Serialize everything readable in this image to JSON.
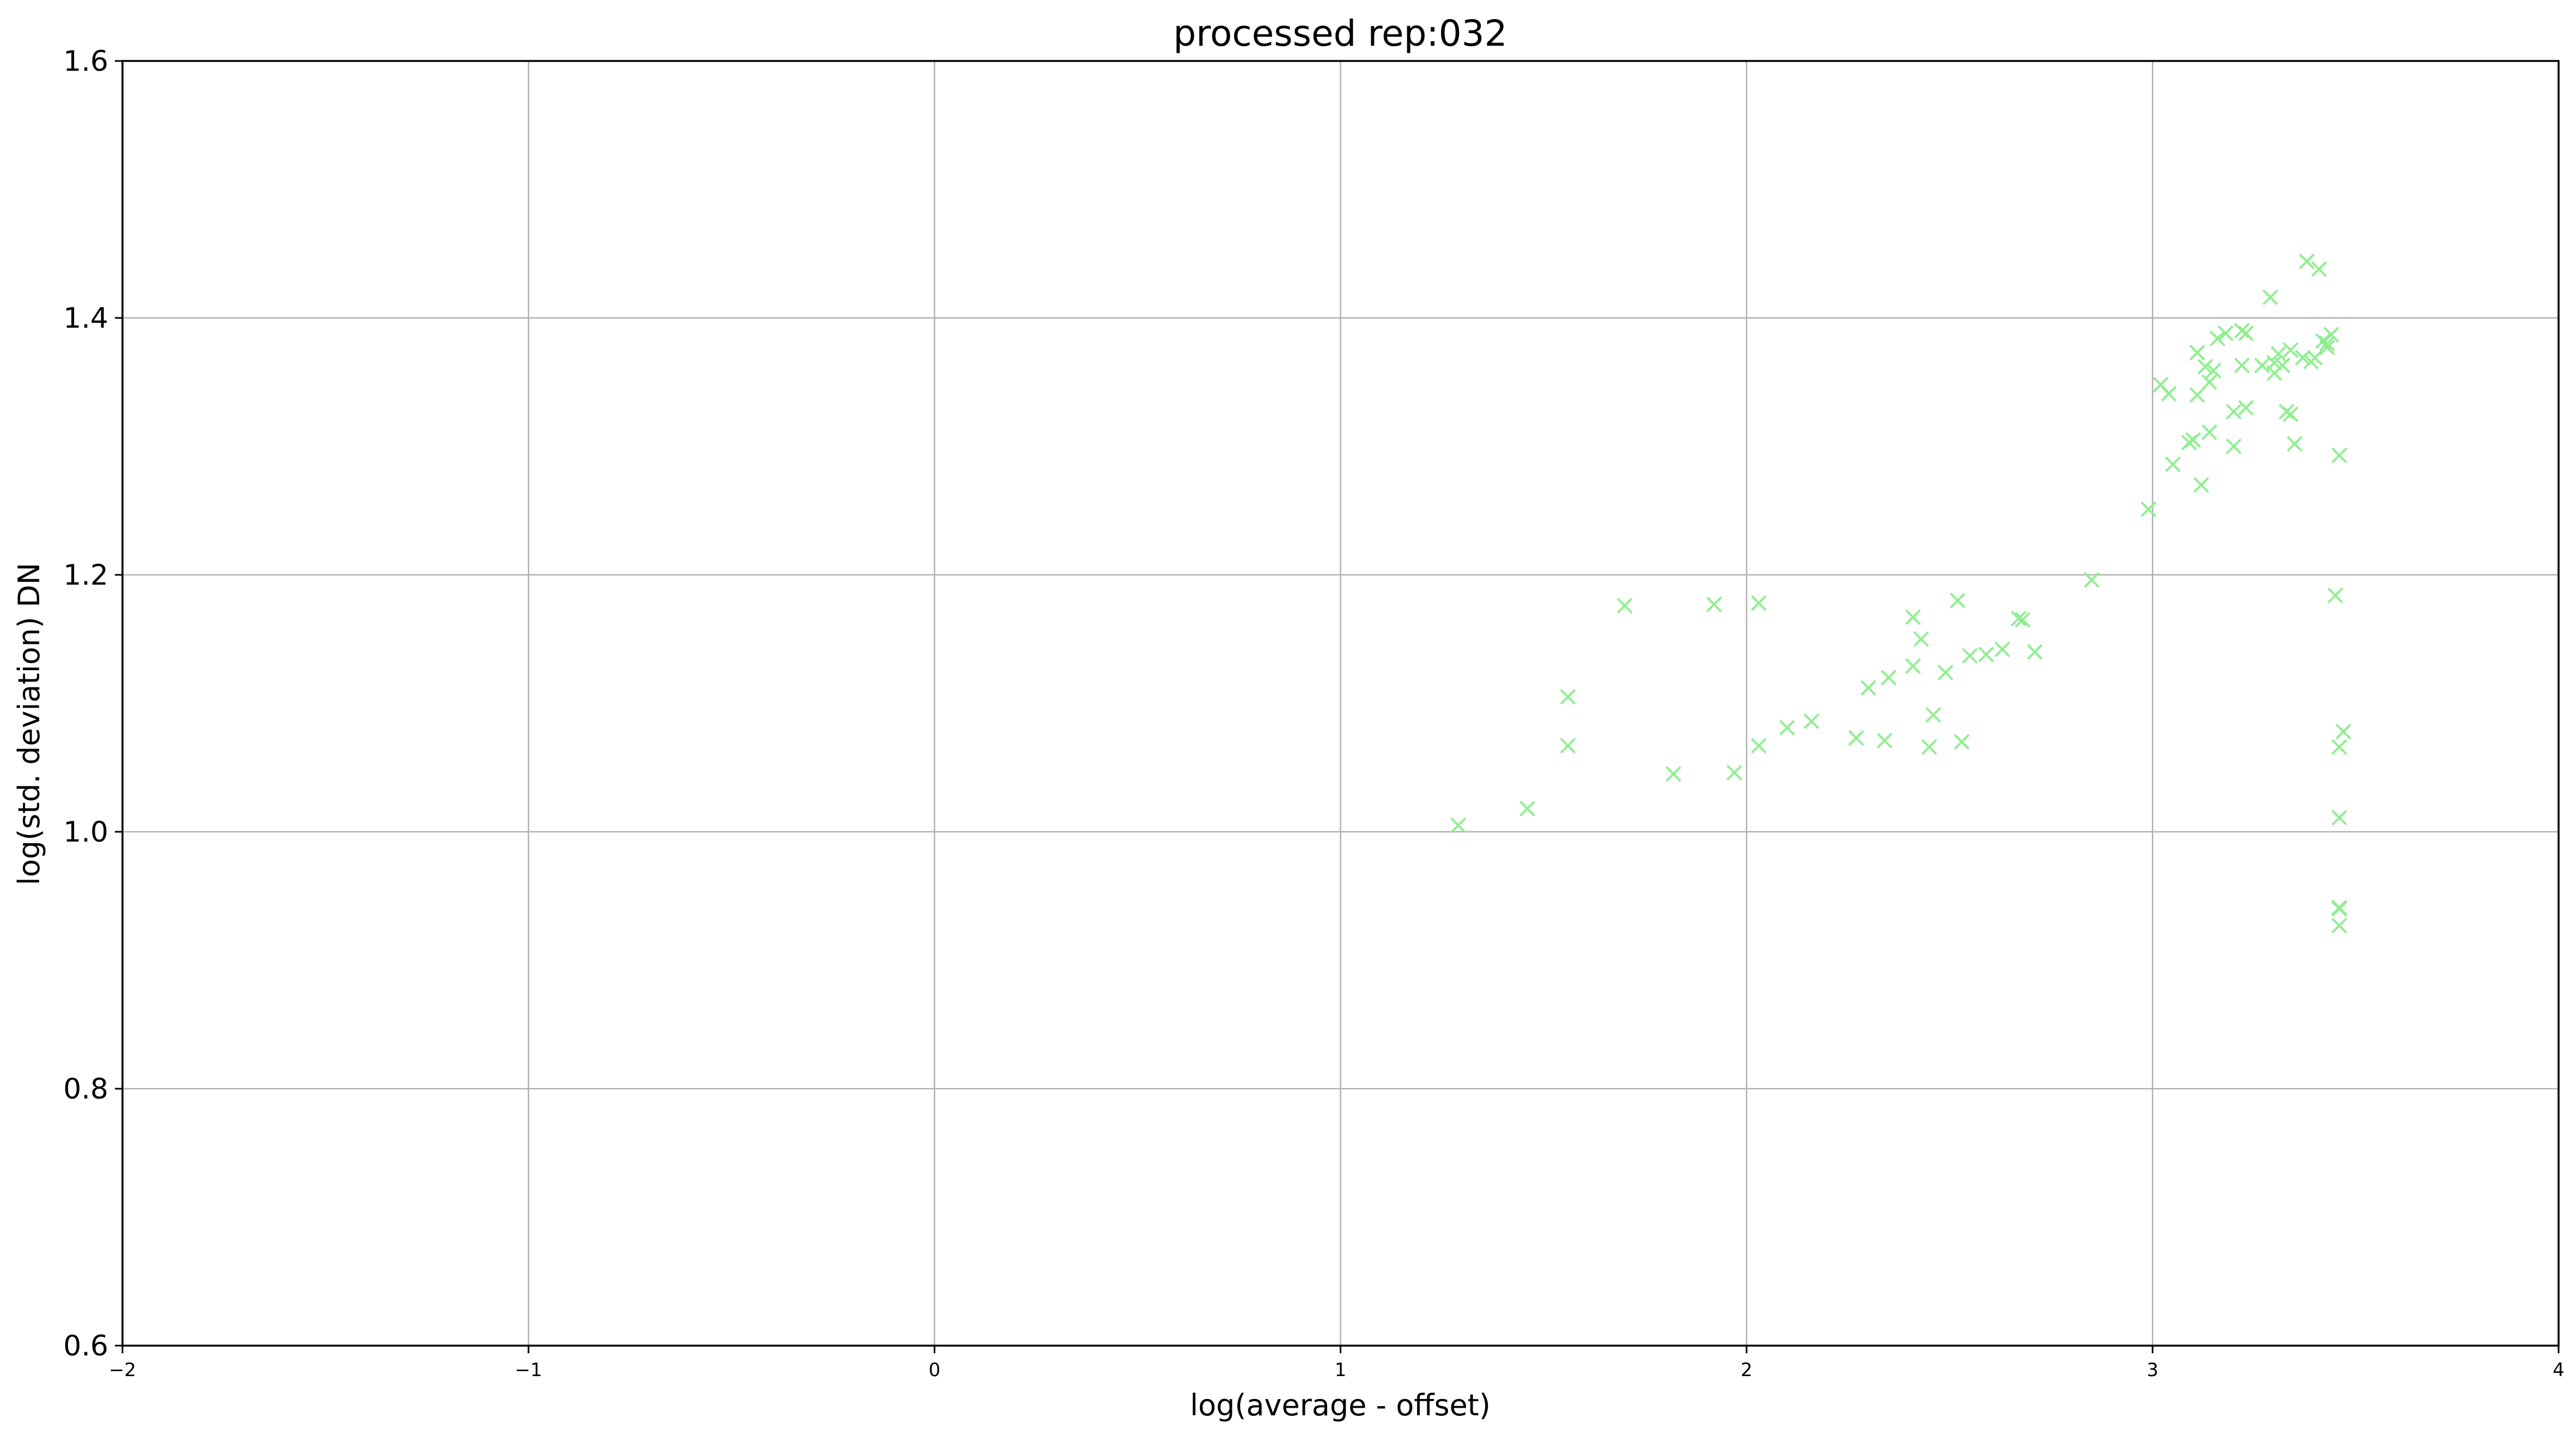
{
  "chart_data": {
    "type": "scatter",
    "title": "processed rep:032",
    "xlabel": "log(average - offset)",
    "ylabel": "log(std. deviation) DN",
    "xlim": [
      -2,
      4
    ],
    "ylim": [
      0.6,
      1.6
    ],
    "xticks": [
      -2,
      -1,
      0,
      1,
      2,
      3,
      4
    ],
    "xtick_labels": [
      "−2",
      "−1",
      "0",
      "1",
      "2",
      "3",
      "4"
    ],
    "yticks": [
      0.6,
      0.8,
      1.0,
      1.2,
      1.4,
      1.6
    ],
    "ytick_labels": [
      "0.6",
      "0.8",
      "1.0",
      "1.2",
      "1.4",
      "1.6"
    ],
    "grid": true,
    "marker": "x",
    "marker_color": "#90ee90",
    "series": [
      {
        "points": [
          [
            1.29,
            1.005
          ],
          [
            1.46,
            1.018
          ],
          [
            1.56,
            1.105
          ],
          [
            1.56,
            1.067
          ],
          [
            1.7,
            1.176
          ],
          [
            1.82,
            1.045
          ],
          [
            1.92,
            1.177
          ],
          [
            1.97,
            1.046
          ],
          [
            2.03,
            1.067
          ],
          [
            2.03,
            1.178
          ],
          [
            2.1,
            1.081
          ],
          [
            2.16,
            1.086
          ],
          [
            2.27,
            1.073
          ],
          [
            2.3,
            1.112
          ],
          [
            2.34,
            1.071
          ],
          [
            2.35,
            1.12
          ],
          [
            2.41,
            1.129
          ],
          [
            2.41,
            1.167
          ],
          [
            2.43,
            1.15
          ],
          [
            2.45,
            1.066
          ],
          [
            2.46,
            1.091
          ],
          [
            2.49,
            1.124
          ],
          [
            2.52,
            1.18
          ],
          [
            2.53,
            1.07
          ],
          [
            2.55,
            1.137
          ],
          [
            2.59,
            1.138
          ],
          [
            2.63,
            1.142
          ],
          [
            2.67,
            1.166
          ],
          [
            2.68,
            1.165
          ],
          [
            2.71,
            1.14
          ],
          [
            2.85,
            1.196
          ],
          [
            2.99,
            1.251
          ],
          [
            3.02,
            1.348
          ],
          [
            3.04,
            1.341
          ],
          [
            3.05,
            1.286
          ],
          [
            3.09,
            1.303
          ],
          [
            3.1,
            1.305
          ],
          [
            3.11,
            1.34
          ],
          [
            3.11,
            1.373
          ],
          [
            3.12,
            1.27
          ],
          [
            3.13,
            1.362
          ],
          [
            3.14,
            1.35
          ],
          [
            3.14,
            1.311
          ],
          [
            3.15,
            1.359
          ],
          [
            3.16,
            1.384
          ],
          [
            3.18,
            1.388
          ],
          [
            3.2,
            1.3
          ],
          [
            3.2,
            1.327
          ],
          [
            3.22,
            1.363
          ],
          [
            3.22,
            1.39
          ],
          [
            3.23,
            1.33
          ],
          [
            3.23,
            1.388
          ],
          [
            3.27,
            1.363
          ],
          [
            3.29,
            1.416
          ],
          [
            3.3,
            1.365
          ],
          [
            3.3,
            1.357
          ],
          [
            3.31,
            1.372
          ],
          [
            3.32,
            1.363
          ],
          [
            3.33,
            1.327
          ],
          [
            3.34,
            1.325
          ],
          [
            3.34,
            1.375
          ],
          [
            3.35,
            1.302
          ],
          [
            3.37,
            1.369
          ],
          [
            3.38,
            1.444
          ],
          [
            3.39,
            1.366
          ],
          [
            3.4,
            1.369
          ],
          [
            3.41,
            1.438
          ],
          [
            3.42,
            1.382
          ],
          [
            3.43,
            1.377
          ],
          [
            3.44,
            1.387
          ],
          [
            3.45,
            1.184
          ],
          [
            3.46,
            1.293
          ],
          [
            3.46,
            1.066
          ],
          [
            3.46,
            1.011
          ],
          [
            3.46,
            0.941
          ],
          [
            3.46,
            0.94
          ],
          [
            3.46,
            0.927
          ],
          [
            3.47,
            1.078
          ],
          [
            3.43,
            1.38
          ]
        ]
      }
    ]
  }
}
